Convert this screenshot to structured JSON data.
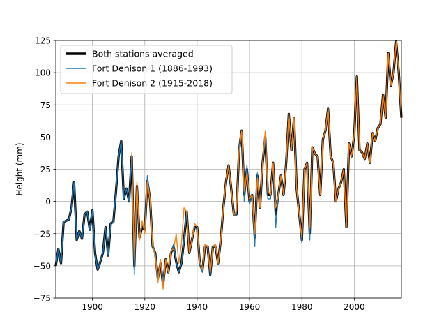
{
  "chart_data": {
    "type": "line",
    "title": "",
    "xlabel": "",
    "ylabel": "Height (mm)",
    "xlim": [
      1886,
      2018
    ],
    "ylim": [
      -75,
      125
    ],
    "xticks": [
      1900,
      1920,
      1940,
      1960,
      1980,
      2000
    ],
    "yticks": [
      -75,
      -50,
      -25,
      0,
      25,
      50,
      75,
      100,
      125
    ],
    "grid": true,
    "legend_position": "top-left",
    "series": [
      {
        "name": "Both stations averaged",
        "color": "#000000",
        "style": "thick",
        "x": [
          1886,
          1887,
          1888,
          1889,
          1890,
          1891,
          1892,
          1893,
          1894,
          1895,
          1896,
          1897,
          1898,
          1899,
          1900,
          1901,
          1902,
          1903,
          1904,
          1905,
          1906,
          1907,
          1908,
          1909,
          1910,
          1911,
          1912,
          1913,
          1914,
          1915,
          1916,
          1917,
          1918,
          1919,
          1920,
          1921,
          1922,
          1923,
          1924,
          1925,
          1926,
          1927,
          1928,
          1929,
          1930,
          1931,
          1932,
          1933,
          1934,
          1935,
          1936,
          1937,
          1938,
          1939,
          1940,
          1941,
          1942,
          1943,
          1944,
          1945,
          1946,
          1947,
          1948,
          1949,
          1950,
          1951,
          1952,
          1953,
          1954,
          1955,
          1956,
          1957,
          1958,
          1959,
          1960,
          1961,
          1962,
          1963,
          1964,
          1965,
          1966,
          1967,
          1968,
          1969,
          1970,
          1971,
          1972,
          1973,
          1974,
          1975,
          1976,
          1977,
          1978,
          1979,
          1980,
          1981,
          1982,
          1983,
          1984,
          1985,
          1986,
          1987,
          1988,
          1989,
          1990,
          1991,
          1992,
          1993,
          1994,
          1995,
          1996,
          1997,
          1998,
          1999,
          2000,
          2001,
          2002,
          2003,
          2004,
          2005,
          2006,
          2007,
          2008,
          2009,
          2010,
          2011,
          2012,
          2013,
          2014,
          2015,
          2016,
          2017,
          2018
        ],
        "y": [
          -50,
          -37,
          -48,
          -16,
          -15,
          -14,
          -5,
          15,
          -30,
          -23,
          -29,
          -10,
          -8,
          -22,
          -7,
          -40,
          -53,
          -47,
          -40,
          -20,
          -42,
          -17,
          -16,
          8,
          35,
          47,
          2,
          10,
          0,
          35,
          -50,
          12,
          -28,
          -20,
          -22,
          16,
          2,
          -35,
          -40,
          -60,
          -48,
          -65,
          -45,
          -55,
          -40,
          -35,
          -47,
          -55,
          -48,
          -30,
          -8,
          -40,
          -30,
          -20,
          -20,
          -48,
          -54,
          -35,
          -35,
          -57,
          -35,
          -35,
          -48,
          -30,
          -5,
          15,
          28,
          10,
          -10,
          -10,
          40,
          55,
          5,
          25,
          0,
          5,
          -28,
          20,
          -5,
          30,
          50,
          5,
          5,
          30,
          -10,
          5,
          20,
          5,
          30,
          68,
          40,
          65,
          10,
          -10,
          -30,
          25,
          30,
          -25,
          42,
          37,
          35,
          5,
          48,
          55,
          72,
          35,
          30,
          0,
          10,
          15,
          25,
          -20,
          45,
          35,
          52,
          97,
          40,
          38,
          33,
          45,
          30,
          53,
          47,
          57,
          60,
          83,
          65,
          115,
          90,
          100,
          124,
          100,
          65
        ]
      },
      {
        "name": "Fort Denison 1 (1886-1993)",
        "color": "#1f77b4",
        "style": "thin",
        "x": [
          1886,
          1887,
          1888,
          1889,
          1890,
          1891,
          1892,
          1893,
          1894,
          1895,
          1896,
          1897,
          1898,
          1899,
          1900,
          1901,
          1902,
          1903,
          1904,
          1905,
          1906,
          1907,
          1908,
          1909,
          1910,
          1911,
          1912,
          1913,
          1914,
          1915,
          1916,
          1917,
          1918,
          1919,
          1920,
          1921,
          1922,
          1923,
          1924,
          1925,
          1926,
          1927,
          1928,
          1929,
          1930,
          1931,
          1932,
          1933,
          1934,
          1935,
          1936,
          1937,
          1938,
          1939,
          1940,
          1941,
          1942,
          1943,
          1944,
          1945,
          1946,
          1947,
          1948,
          1949,
          1950,
          1951,
          1952,
          1953,
          1954,
          1955,
          1956,
          1957,
          1958,
          1959,
          1960,
          1961,
          1962,
          1963,
          1964,
          1965,
          1966,
          1967,
          1968,
          1969,
          1970,
          1971,
          1972,
          1973,
          1974,
          1975,
          1976,
          1977,
          1978,
          1979,
          1980,
          1981,
          1982,
          1983,
          1984,
          1985,
          1986,
          1987,
          1988,
          1989,
          1990,
          1991,
          1992,
          1993
        ],
        "y": [
          -50,
          -37,
          -48,
          -16,
          -15,
          -14,
          -5,
          15,
          -30,
          -23,
          -29,
          -10,
          -8,
          -22,
          -7,
          -40,
          -53,
          -47,
          -40,
          -20,
          -42,
          -17,
          -16,
          8,
          35,
          47,
          2,
          10,
          0,
          35,
          -57,
          12,
          -28,
          -18,
          -20,
          20,
          2,
          -33,
          -40,
          -58,
          -48,
          -62,
          -45,
          -55,
          -40,
          -33,
          -47,
          -55,
          -48,
          -30,
          -8,
          -40,
          -30,
          -20,
          -22,
          -50,
          -55,
          -35,
          -35,
          -58,
          -35,
          -35,
          -48,
          -30,
          -5,
          15,
          28,
          10,
          -10,
          -10,
          42,
          55,
          0,
          28,
          -2,
          5,
          -35,
          22,
          -5,
          30,
          50,
          2,
          2,
          30,
          -20,
          5,
          20,
          5,
          30,
          68,
          40,
          65,
          10,
          -10,
          -32,
          25,
          30,
          -30,
          42,
          37,
          35,
          5,
          48,
          55,
          72,
          35,
          30,
          0
        ]
      },
      {
        "name": "Fort Denison 2 (1915-2018)",
        "color": "#ff7f0e",
        "style": "thin",
        "x": [
          1915,
          1916,
          1917,
          1918,
          1919,
          1920,
          1921,
          1922,
          1923,
          1924,
          1925,
          1926,
          1927,
          1928,
          1929,
          1930,
          1931,
          1932,
          1933,
          1934,
          1935,
          1936,
          1937,
          1938,
          1939,
          1940,
          1941,
          1942,
          1943,
          1944,
          1945,
          1946,
          1947,
          1948,
          1949,
          1950,
          1951,
          1952,
          1953,
          1954,
          1955,
          1956,
          1957,
          1958,
          1959,
          1960,
          1961,
          1962,
          1963,
          1964,
          1965,
          1966,
          1967,
          1968,
          1969,
          1970,
          1971,
          1972,
          1973,
          1974,
          1975,
          1976,
          1977,
          1978,
          1979,
          1980,
          1981,
          1982,
          1983,
          1984,
          1985,
          1986,
          1987,
          1988,
          1989,
          1990,
          1991,
          1992,
          1993,
          1994,
          1995,
          1996,
          1997,
          1998,
          1999,
          2000,
          2001,
          2002,
          2003,
          2004,
          2005,
          2006,
          2007,
          2008,
          2009,
          2010,
          2011,
          2012,
          2013,
          2014,
          2015,
          2016,
          2017,
          2018
        ],
        "y": [
          38,
          -45,
          15,
          -30,
          -15,
          -25,
          15,
          2,
          -35,
          -42,
          -63,
          -45,
          -68,
          -45,
          -55,
          -38,
          -37,
          -25,
          -48,
          -33,
          -5,
          -8,
          -40,
          -30,
          -17,
          -20,
          -47,
          -53,
          -33,
          -35,
          -55,
          -35,
          -33,
          -48,
          -30,
          -5,
          15,
          28,
          10,
          -10,
          -8,
          38,
          55,
          8,
          22,
          2,
          5,
          -25,
          18,
          -5,
          30,
          55,
          8,
          5,
          30,
          -5,
          5,
          20,
          5,
          30,
          68,
          40,
          65,
          10,
          -10,
          -28,
          25,
          30,
          -20,
          42,
          37,
          35,
          5,
          48,
          55,
          72,
          35,
          30,
          0,
          10,
          15,
          25,
          -20,
          45,
          35,
          52,
          97,
          40,
          38,
          33,
          45,
          30,
          53,
          47,
          57,
          60,
          83,
          65,
          115,
          90,
          100,
          124,
          100,
          65
        ]
      }
    ]
  }
}
